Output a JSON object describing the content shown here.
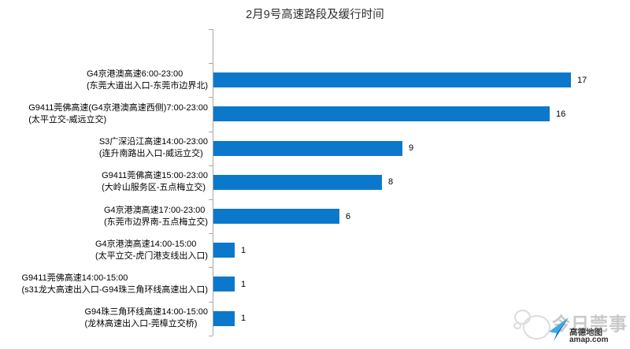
{
  "title": "2月9号高速路段及缓行时间",
  "chart_data": {
    "type": "bar",
    "orientation": "horizontal",
    "title": "2月9号高速路段及缓行时间",
    "xlabel": "",
    "ylabel": "",
    "grid": false,
    "legend": false,
    "x_axis_labels_visible": false,
    "bar_color": "#0c78cc",
    "axis_color": "#a6a6a6",
    "xlim": [
      0,
      18
    ],
    "categories": [
      {
        "line1": "G4京港澳高速6:00-23:00",
        "line2": "(东莞大道出入口-东莞市边界北)"
      },
      {
        "line1": "G9411莞佛高速(G4京港澳高速西侧)7:00-23:00",
        "line2": "(太平立交-威远立交)"
      },
      {
        "line1": "S3广深沿江高速14:00-23:00",
        "line2": "(连升南路出入口-威远立交)"
      },
      {
        "line1": "G9411莞佛高速15:00-23:00",
        "line2": "(大岭山服务区-五点梅立交)"
      },
      {
        "line1": "G4京港澳高速17:00-23:00",
        "line2": "(东莞市边界南-五点梅立交)"
      },
      {
        "line1": "G4京港澳高速14:00-15:00",
        "line2": "(太平立交-虎门港支线出入口)"
      },
      {
        "line1": "G9411莞佛高速14:00-15:00",
        "line2": "(s31龙大高速出入口-G94珠三角环线高速出入口)"
      },
      {
        "line1": "G94珠三角环线高速14:00-15:00",
        "line2": "(龙林高速出入口-莞樟立交桥)"
      }
    ],
    "values": [
      17,
      16,
      9,
      8,
      6,
      1,
      1,
      1
    ]
  },
  "watermark": {
    "publisher": "今日莞事",
    "map_brand": "高德地图",
    "map_domain": "amap.com"
  }
}
